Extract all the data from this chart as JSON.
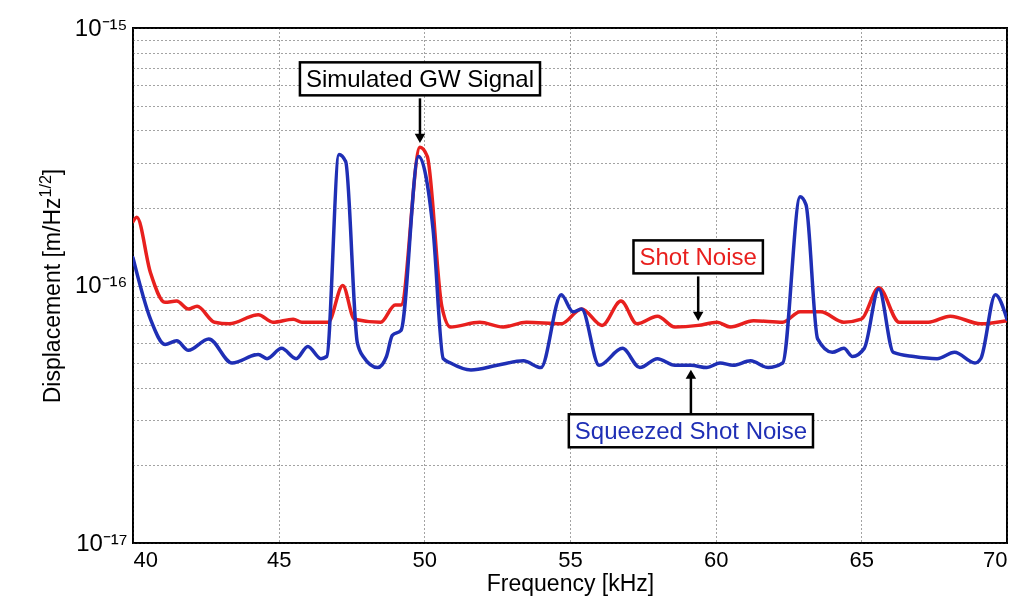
{
  "chart_data": {
    "type": "line",
    "xlabel": "Frequency [kHz]",
    "ylabel": "Displacement [m/Hz$^{1/2}$]",
    "xlim": [
      40,
      70
    ],
    "xticks": [
      40,
      45,
      50,
      55,
      60,
      65,
      70
    ],
    "ylim": [
      1e-17,
      1e-15
    ],
    "log": true,
    "grid": true,
    "yticks": [
      {
        "value": 1e-17,
        "label": "10⁻¹⁷"
      },
      {
        "value": 2e-17,
        "label": null
      },
      {
        "value": 3e-17,
        "label": null
      },
      {
        "value": 4e-17,
        "label": null
      },
      {
        "value": 5e-17,
        "label": null
      },
      {
        "value": 6e-17,
        "label": null
      },
      {
        "value": 7e-17,
        "label": null
      },
      {
        "value": 8e-17,
        "label": null
      },
      {
        "value": 9e-17,
        "label": null
      },
      {
        "value": 1e-16,
        "label": "10⁻¹⁶"
      },
      {
        "value": 2e-16,
        "label": null
      },
      {
        "value": 3e-16,
        "label": null
      },
      {
        "value": 4e-16,
        "label": null
      },
      {
        "value": 5e-16,
        "label": null
      },
      {
        "value": 6e-16,
        "label": null
      },
      {
        "value": 7e-16,
        "label": null
      },
      {
        "value": 8e-16,
        "label": null
      },
      {
        "value": 9e-16,
        "label": null
      },
      {
        "value": 1e-15,
        "label": "10⁻¹⁵"
      }
    ],
    "series": [
      {
        "name": "Shot Noise",
        "color": "#e8201e",
        "x": [
          40.0,
          40.13,
          40.6,
          41.1,
          41.5,
          41.9,
          42.2,
          42.8,
          43.3,
          44.3,
          44.8,
          45.5,
          45.8,
          46.7,
          47.2,
          47.6,
          48.5,
          49.0,
          49.2,
          49.85,
          50.1,
          50.6,
          50.9,
          51.9,
          52.7,
          53.5,
          54.7,
          55.4,
          56.1,
          56.75,
          57.3,
          58.0,
          58.6,
          59.4,
          60.05,
          60.5,
          61.3,
          62.3,
          62.9,
          63.6,
          64.4,
          65.0,
          65.6,
          66.3,
          67.3,
          68.05,
          69.1,
          70.0
        ],
        "values": [
          1.77e-16,
          1.84e-16,
          1.12e-16,
          8.6e-17,
          8.7e-17,
          8.1e-17,
          8.3e-17,
          7.2e-17,
          7.1e-17,
          7.7e-17,
          7.2e-17,
          7.4e-17,
          7.2e-17,
          7.2e-17,
          1e-16,
          7.4e-17,
          7.2e-17,
          8.4e-17,
          8.4e-17,
          3.44e-16,
          3.17e-16,
          8.3e-17,
          6.9e-17,
          7.2e-17,
          6.9e-17,
          7.2e-17,
          7.1e-17,
          8.1e-17,
          7e-17,
          8.7e-17,
          7.1e-17,
          7.6e-17,
          6.9e-17,
          7e-17,
          7.2e-17,
          6.9e-17,
          7.3e-17,
          7.2e-17,
          7.9e-17,
          7.9e-17,
          7.2e-17,
          7.4e-17,
          9.8e-17,
          7.2e-17,
          7.2e-17,
          7.6e-17,
          7.1e-17,
          7.3e-17
        ]
      },
      {
        "name": "Squeezed Shot Noise",
        "color": "#1f2fb5",
        "x": [
          40.0,
          40.6,
          41.1,
          41.5,
          41.9,
          42.6,
          43.4,
          44.3,
          44.6,
          45.1,
          45.6,
          46.0,
          46.45,
          46.65,
          47.07,
          47.3,
          47.7,
          47.9,
          48.4,
          48.7,
          48.9,
          49.2,
          49.8,
          50.3,
          50.65,
          50.9,
          51.6,
          52.5,
          53.4,
          54.0,
          54.7,
          55.1,
          55.4,
          56.0,
          56.8,
          57.4,
          58.0,
          58.6,
          59.15,
          59.7,
          60.15,
          60.6,
          61.2,
          61.8,
          62.3,
          62.9,
          63.1,
          63.5,
          64.0,
          64.4,
          64.7,
          65.1,
          65.6,
          66.1,
          66.8,
          67.6,
          68.2,
          68.9,
          69.1,
          69.6,
          70.0
        ],
        "values": [
          1.28e-16,
          7.4e-17,
          5.9e-17,
          6.1e-17,
          5.6e-17,
          6.2e-17,
          5e-17,
          5.4e-17,
          5.2e-17,
          5.7e-17,
          5.2e-17,
          5.8e-17,
          5.2e-17,
          5.3e-17,
          3.23e-16,
          3.03e-16,
          6e-17,
          5.3e-17,
          4.8e-17,
          5.3e-17,
          6.4e-17,
          6.7e-17,
          3.17e-16,
          1.65e-16,
          5.2e-17,
          5e-17,
          4.7e-17,
          4.9e-17,
          5.1e-17,
          4.8e-17,
          9.2e-17,
          7.9e-17,
          8.1e-17,
          4.9e-17,
          5.7e-17,
          4.8e-17,
          5.2e-17,
          4.9e-17,
          4.9e-17,
          4.8e-17,
          5e-17,
          4.9e-17,
          5.1e-17,
          4.8e-17,
          5e-17,
          2.21e-16,
          2.06e-16,
          6.2e-17,
          5.5e-17,
          5.7e-17,
          5.3e-17,
          5.7e-17,
          9.7e-17,
          5.5e-17,
          5.3e-17,
          5.2e-17,
          5.5e-17,
          5e-17,
          5.2e-17,
          9.2e-17,
          7.4e-17
        ]
      }
    ],
    "annotations": [
      "Simulated GW Signal"
    ]
  }
}
